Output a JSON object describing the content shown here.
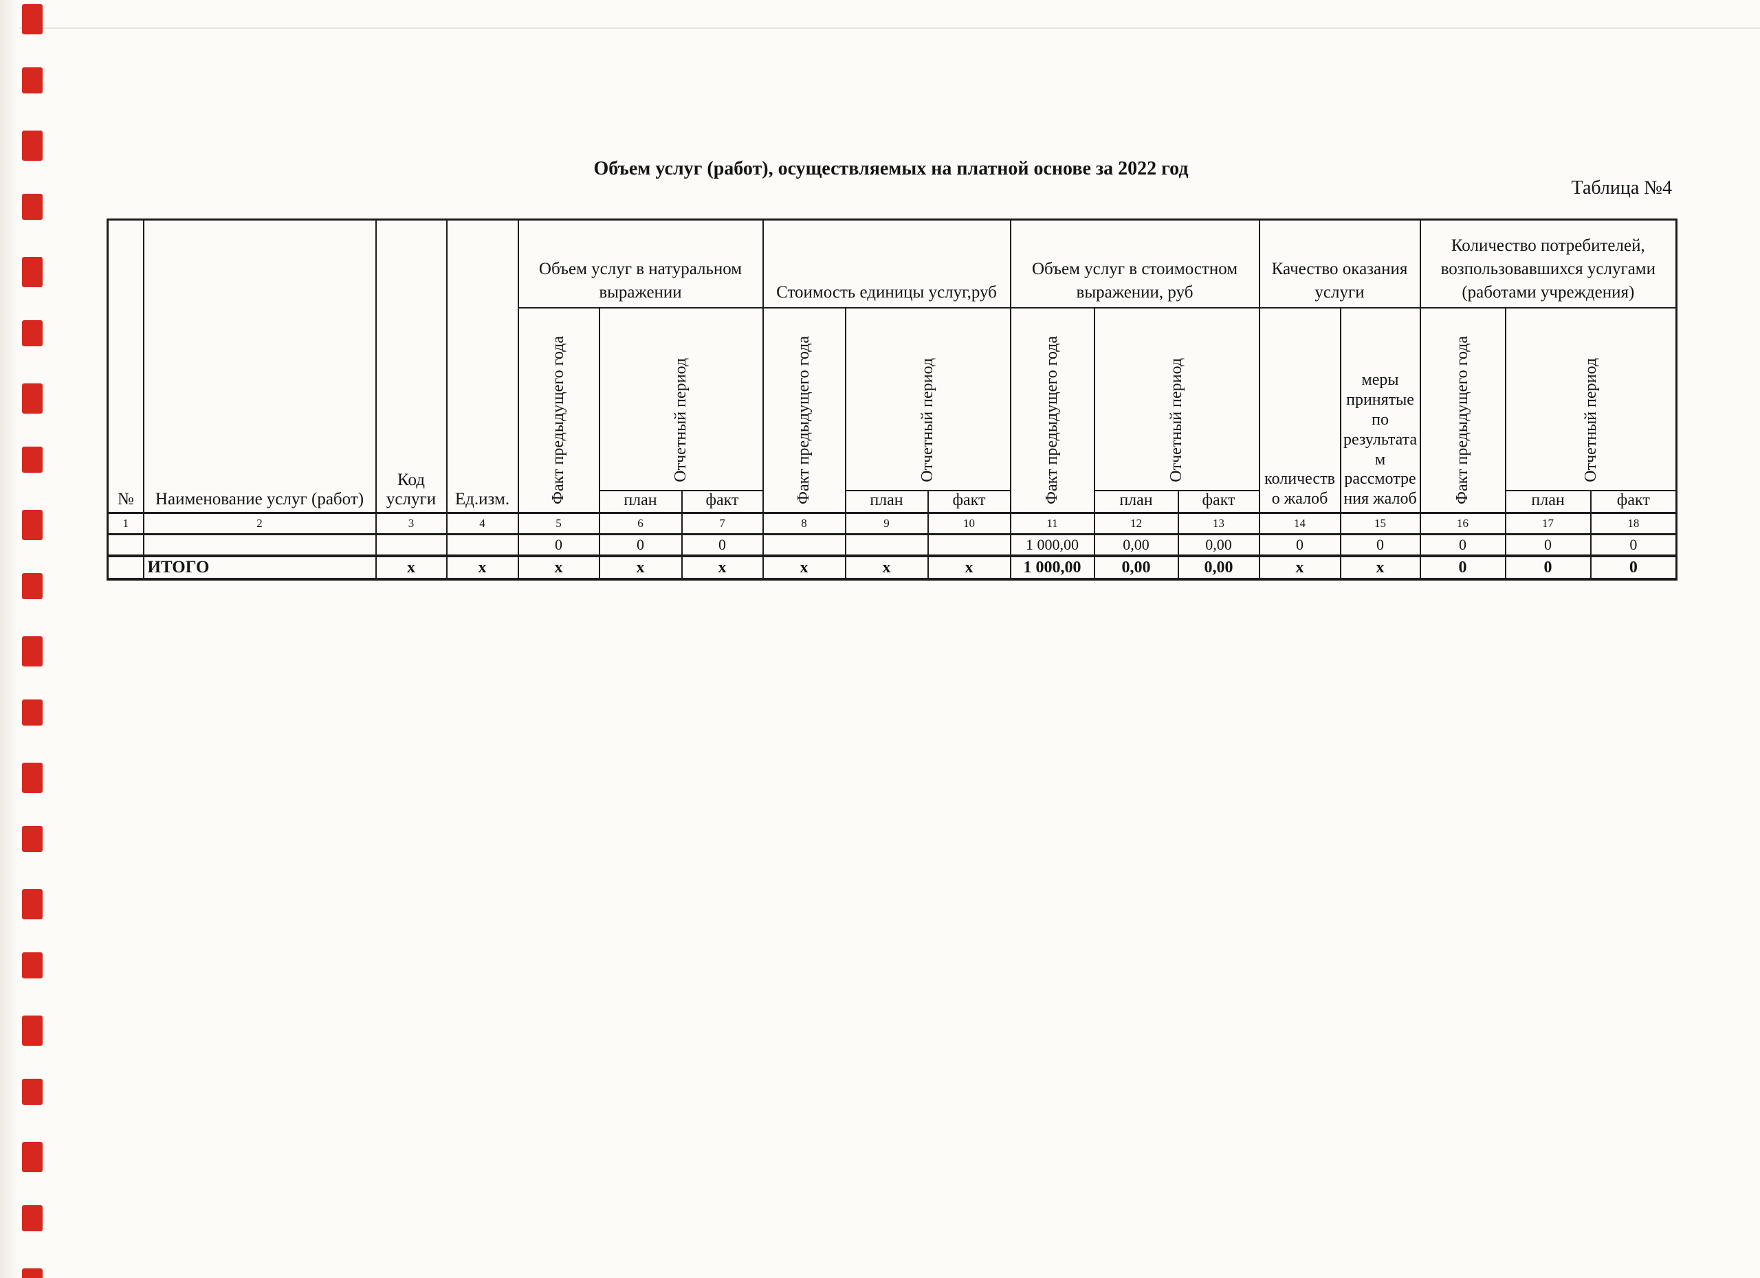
{
  "page": {
    "title": "Объем услуг (работ), осуществляемых на платной основе за 2022 год",
    "table_caption": "Таблица №4"
  },
  "scan": {
    "edge_mark_color": "#d6281e",
    "edge_mark_count": 21
  },
  "table": {
    "header": {
      "no": "№",
      "service_name": "Наименование услуг (работ)",
      "service_code_lines": [
        "Код",
        "услуги"
      ],
      "unit": "Ед.изм.",
      "groups": [
        {
          "label_lines": [
            "Объем услуг в натуральном",
            "выражении"
          ]
        },
        {
          "label_lines": [
            "Стоимость единицы услуг,руб"
          ]
        },
        {
          "label_lines": [
            "Объем услуг в стоимостном",
            "выражении, руб"
          ]
        },
        {
          "label_lines": [
            "Качество оказания",
            "услуги"
          ]
        },
        {
          "label_lines": [
            "Количество потребителей,",
            "возпользовавшихся услугами",
            "(работами учреждения)"
          ]
        }
      ],
      "fact_prev_year": "Факт предыдущего года",
      "reporting_period": "Отчетный период",
      "plan": "план",
      "fact": "факт",
      "complaints_count_lines": [
        "количеств",
        "о жалоб"
      ],
      "complaint_measures_lines": [
        "меры",
        "принятые",
        "по",
        "результата",
        "м",
        "рассмотре",
        "ния жалоб"
      ]
    },
    "column_numbers": [
      "1",
      "2",
      "3",
      "4",
      "5",
      "6",
      "7",
      "8",
      "9",
      "10",
      "11",
      "12",
      "13",
      "14",
      "15",
      "16",
      "17",
      "18"
    ],
    "data_row": [
      "",
      "",
      "",
      "",
      "0",
      "0",
      "0",
      "",
      "",
      "",
      "1 000,00",
      "0,00",
      "0,00",
      "0",
      "0",
      "0",
      "0",
      "0"
    ],
    "total_row": [
      "",
      "ИТОГО",
      "x",
      "x",
      "x",
      "x",
      "x",
      "x",
      "x",
      "x",
      "1 000,00",
      "0,00",
      "0,00",
      "x",
      "x",
      "0",
      "0",
      "0"
    ]
  }
}
